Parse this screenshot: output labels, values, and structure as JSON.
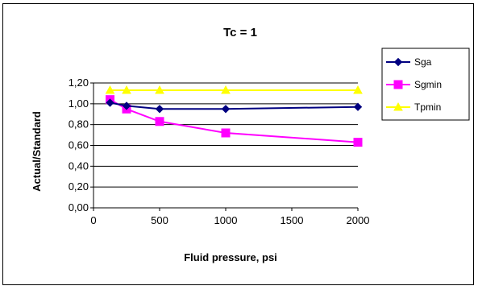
{
  "chart_data": {
    "type": "line",
    "title": "Tc = 1",
    "xlabel": "Fluid pressure, psi",
    "ylabel": "Actual/Standard",
    "xlim": [
      0,
      2000
    ],
    "ylim": [
      0,
      1.2
    ],
    "x_ticks": [
      "0",
      "500",
      "1000",
      "1500",
      "2000"
    ],
    "y_ticks": [
      "0,00",
      "0,20",
      "0,40",
      "0,60",
      "0,80",
      "1,00",
      "1,20"
    ],
    "grid": "horizontal",
    "legend_position": "right",
    "series": [
      {
        "name": "Sga",
        "color": "#000080",
        "marker": "diamond",
        "points": [
          [
            125,
            1.01
          ],
          [
            250,
            0.98
          ],
          [
            500,
            0.95
          ],
          [
            1000,
            0.95
          ],
          [
            2000,
            0.97
          ]
        ]
      },
      {
        "name": "Sgmin",
        "color": "#ff00ff",
        "marker": "square",
        "points": [
          [
            125,
            1.04
          ],
          [
            250,
            0.95
          ],
          [
            500,
            0.83
          ],
          [
            1000,
            0.72
          ],
          [
            2000,
            0.63
          ]
        ]
      },
      {
        "name": "Tpmin",
        "color": "#ffff00",
        "marker": "triangle",
        "points": [
          [
            125,
            1.13
          ],
          [
            250,
            1.13
          ],
          [
            500,
            1.13
          ],
          [
            1000,
            1.13
          ],
          [
            2000,
            1.13
          ]
        ]
      }
    ]
  }
}
